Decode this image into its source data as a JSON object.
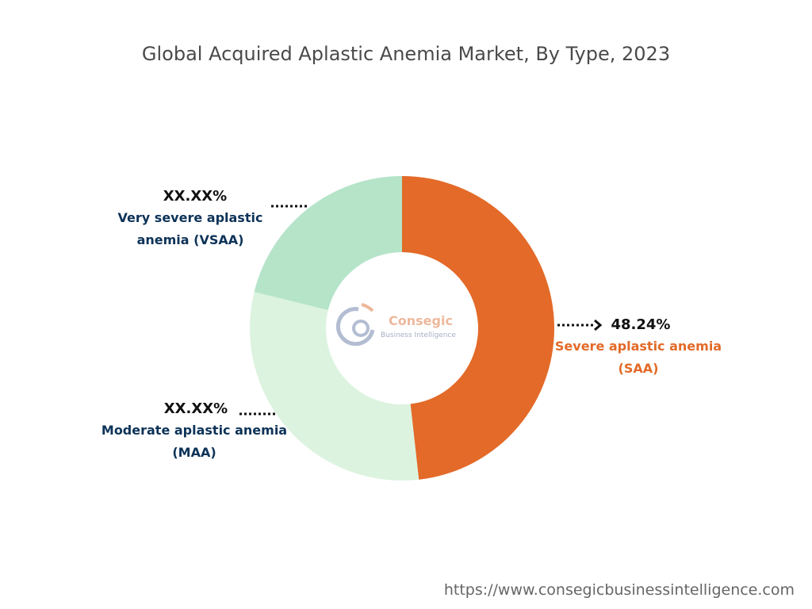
{
  "chart_data": {
    "type": "donut",
    "title": "Global Acquired Aplastic Anemia Market, By Type, 2023",
    "categories": [
      "Severe aplastic anemia (SAA)",
      "Moderate aplastic anemia (MAA)",
      "Very severe aplastic anemia (VSAA)"
    ],
    "values": [
      48.24,
      30.6,
      21.16
    ],
    "value_labels": [
      "48.24%",
      "XX.XX%",
      "XX.XX%"
    ],
    "colors": [
      "#e36a28",
      "#dcf3e0",
      "#b5e4c9"
    ],
    "label_colors": [
      "#e36a28",
      "#0d3358",
      "#0d3358"
    ]
  },
  "logo": {
    "name": "Consegic",
    "tagline": "Business Intelligence"
  },
  "source_url": "https://www.consegicbusinessintelligence.com"
}
